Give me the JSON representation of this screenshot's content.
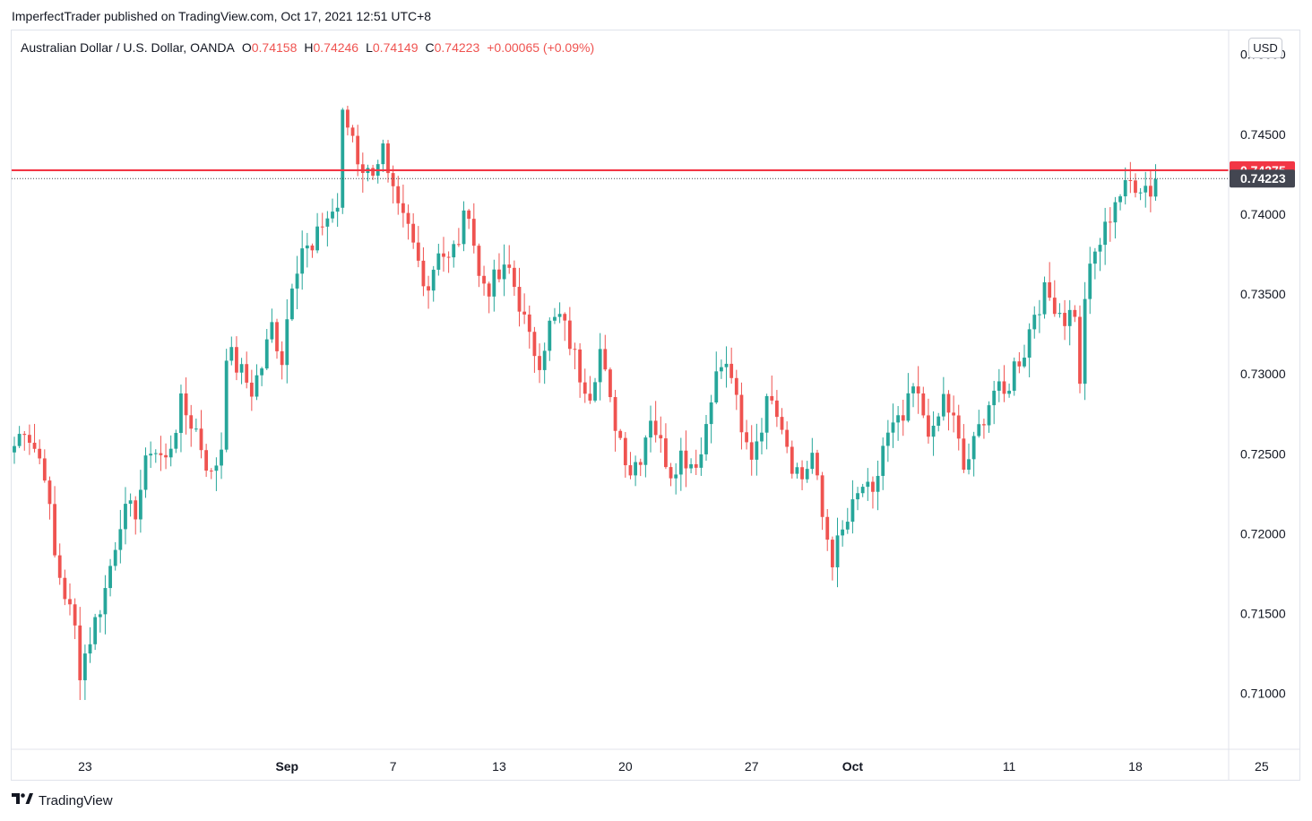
{
  "publisher_line": "ImperfectTrader published on TradingView.com, Oct 17, 2021 12:51 UTC+8",
  "legend": {
    "symbol": "Australian Dollar / U.S. Dollar, OANDA",
    "o_label": "O",
    "o_value": "0.74158",
    "h_label": "H",
    "h_value": "0.74246",
    "l_label": "L",
    "l_value": "0.74149",
    "c_label": "C",
    "c_value": "0.74223",
    "change": "+0.00065 (+0.09%)"
  },
  "currency_button": "USD",
  "footer_brand": "TradingView",
  "logo_icon": "tradingview-logo-icon",
  "colors": {
    "up": "#26a69a",
    "down": "#ef5350",
    "resistance_line": "#f23645",
    "last_price_badge": "#434651",
    "text": "#131722",
    "grid_border": "#e0e3eb"
  },
  "chart_data": {
    "type": "candlestick",
    "symbol": "AUDUSD",
    "timeframe": "4h",
    "price_axis": {
      "min": 0.7065,
      "max": 0.7515,
      "ticks": [
        "0.75000",
        "0.74500",
        "0.74000",
        "0.73500",
        "0.73000",
        "0.72500",
        "0.72000",
        "0.71500",
        "0.71000"
      ],
      "tick_values": [
        0.75,
        0.745,
        0.74,
        0.735,
        0.73,
        0.725,
        0.72,
        0.715,
        0.71
      ]
    },
    "time_axis": {
      "labels": [
        {
          "text": "23",
          "bar": 14,
          "bold": false
        },
        {
          "text": "Sep",
          "bar": 54,
          "bold": true
        },
        {
          "text": "7",
          "bar": 75,
          "bold": false
        },
        {
          "text": "13",
          "bar": 96,
          "bold": false
        },
        {
          "text": "20",
          "bar": 121,
          "bold": false
        },
        {
          "text": "27",
          "bar": 146,
          "bold": false
        },
        {
          "text": "Oct",
          "bar": 166,
          "bold": true
        },
        {
          "text": "11",
          "bar": 197,
          "bold": false
        },
        {
          "text": "18",
          "bar": 222,
          "bold": false
        },
        {
          "text": "25",
          "bar": 247,
          "bold": false
        }
      ],
      "bar_count_span": 248
    },
    "horizontal_line": {
      "price": 0.74275,
      "label": "0.74275"
    },
    "last_price": {
      "price": 0.74223,
      "label": "0.74223"
    },
    "anchors": [
      [
        0,
        0.7255
      ],
      [
        2,
        0.7268
      ],
      [
        6,
        0.724
      ],
      [
        8,
        0.7185
      ],
      [
        12,
        0.714
      ],
      [
        13,
        0.7115
      ],
      [
        15,
        0.7135
      ],
      [
        18,
        0.7165
      ],
      [
        21,
        0.721
      ],
      [
        24,
        0.7215
      ],
      [
        27,
        0.7255
      ],
      [
        30,
        0.7245
      ],
      [
        33,
        0.728
      ],
      [
        36,
        0.7265
      ],
      [
        39,
        0.7235
      ],
      [
        41,
        0.7255
      ],
      [
        42,
        0.7315
      ],
      [
        44,
        0.7305
      ],
      [
        47,
        0.729
      ],
      [
        49,
        0.7305
      ],
      [
        51,
        0.733
      ],
      [
        53,
        0.731
      ],
      [
        55,
        0.736
      ],
      [
        57,
        0.738
      ],
      [
        59,
        0.7375
      ],
      [
        61,
        0.7395
      ],
      [
        64,
        0.7405
      ],
      [
        65,
        0.746
      ],
      [
        67,
        0.745
      ],
      [
        68,
        0.7435
      ],
      [
        70,
        0.7425
      ],
      [
        73,
        0.744
      ],
      [
        74,
        0.742
      ],
      [
        76,
        0.74
      ],
      [
        78,
        0.739
      ],
      [
        80,
        0.737
      ],
      [
        82,
        0.7355
      ],
      [
        84,
        0.738
      ],
      [
        86,
        0.737
      ],
      [
        88,
        0.7385
      ],
      [
        90,
        0.7405
      ],
      [
        92,
        0.736
      ],
      [
        94,
        0.7355
      ],
      [
        96,
        0.736
      ],
      [
        98,
        0.7365
      ],
      [
        100,
        0.7345
      ],
      [
        102,
        0.732
      ],
      [
        104,
        0.731
      ],
      [
        106,
        0.733
      ],
      [
        108,
        0.7335
      ],
      [
        110,
        0.732
      ],
      [
        112,
        0.73
      ],
      [
        114,
        0.729
      ],
      [
        116,
        0.7315
      ],
      [
        118,
        0.728
      ],
      [
        120,
        0.726
      ],
      [
        122,
        0.724
      ],
      [
        124,
        0.725
      ],
      [
        126,
        0.7275
      ],
      [
        128,
        0.7255
      ],
      [
        130,
        0.724
      ],
      [
        132,
        0.725
      ],
      [
        134,
        0.7245
      ],
      [
        136,
        0.725
      ],
      [
        138,
        0.729
      ],
      [
        140,
        0.7305
      ],
      [
        142,
        0.73
      ],
      [
        144,
        0.726
      ],
      [
        146,
        0.725
      ],
      [
        148,
        0.727
      ],
      [
        150,
        0.729
      ],
      [
        152,
        0.727
      ],
      [
        154,
        0.7245
      ],
      [
        156,
        0.7235
      ],
      [
        158,
        0.725
      ],
      [
        160,
        0.721
      ],
      [
        162,
        0.7185
      ],
      [
        164,
        0.72
      ],
      [
        166,
        0.7215
      ],
      [
        168,
        0.723
      ],
      [
        170,
        0.722
      ],
      [
        172,
        0.7255
      ],
      [
        174,
        0.7265
      ],
      [
        176,
        0.727
      ],
      [
        178,
        0.729
      ],
      [
        180,
        0.7275
      ],
      [
        182,
        0.726
      ],
      [
        184,
        0.7285
      ],
      [
        186,
        0.727
      ],
      [
        188,
        0.724
      ],
      [
        190,
        0.7255
      ],
      [
        192,
        0.7275
      ],
      [
        194,
        0.729
      ],
      [
        196,
        0.7285
      ],
      [
        198,
        0.7305
      ],
      [
        200,
        0.7315
      ],
      [
        202,
        0.734
      ],
      [
        204,
        0.735
      ],
      [
        206,
        0.7345
      ],
      [
        208,
        0.7335
      ],
      [
        210,
        0.734
      ],
      [
        211,
        0.729
      ],
      [
        212,
        0.735
      ],
      [
        214,
        0.7375
      ],
      [
        216,
        0.739
      ],
      [
        218,
        0.741
      ],
      [
        220,
        0.7415
      ],
      [
        221,
        0.742
      ],
      [
        222,
        0.742
      ],
      [
        224,
        0.7418
      ],
      [
        225,
        0.7415
      ],
      [
        226,
        0.7422
      ]
    ]
  }
}
